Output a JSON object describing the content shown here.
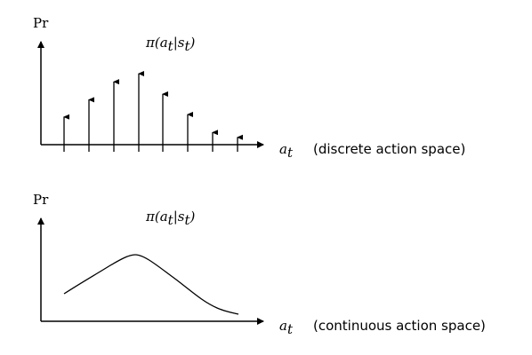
{
  "top_panel": {
    "y_axis_label": "Pr",
    "policy_label": "π(a_t|s_t)",
    "x_axis_label": "a_t",
    "caption": "(discrete action space)",
    "discrete_probabilities": [
      0.34,
      0.55,
      0.77,
      0.87,
      0.62,
      0.37,
      0.15,
      0.09
    ]
  },
  "bottom_panel": {
    "y_axis_label": "Pr",
    "policy_label": "π(a_t|s_t)",
    "x_axis_label": "a_t",
    "caption": "(continuous action space)"
  },
  "colors": {
    "ink": "#000000",
    "background": "#ffffff"
  }
}
